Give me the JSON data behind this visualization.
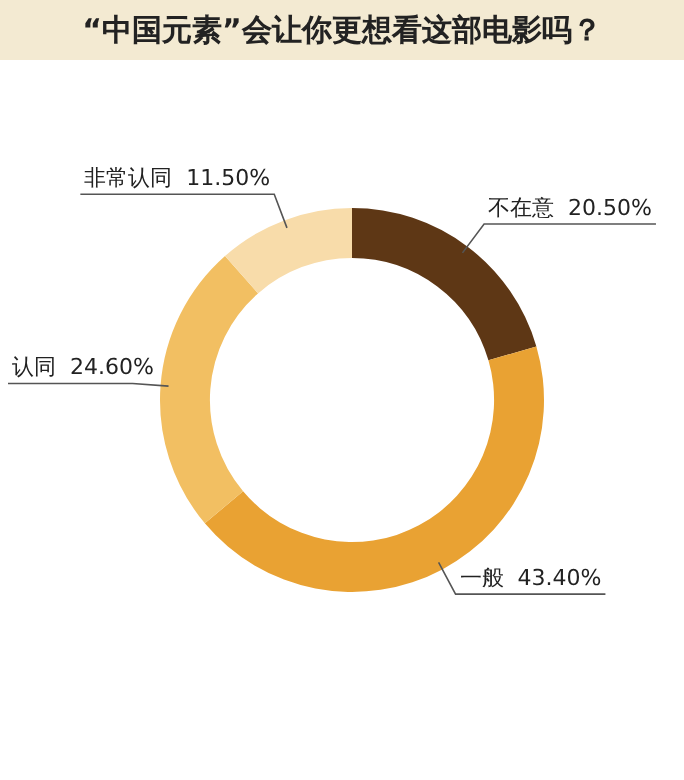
{
  "chart_data": {
    "type": "donut",
    "title": "“中国元素”会让你更想看这部电影吗？",
    "categories": [
      "不在意",
      "一般",
      "认同",
      "非常认同"
    ],
    "values": [
      20.5,
      43.4,
      24.6,
      11.5
    ],
    "colors": [
      "#5e3715",
      "#e9a233",
      "#f2bf62",
      "#f8dcaa"
    ],
    "value_labels": [
      "20.50%",
      "43.40%",
      "24.60%",
      "11.50%"
    ]
  }
}
